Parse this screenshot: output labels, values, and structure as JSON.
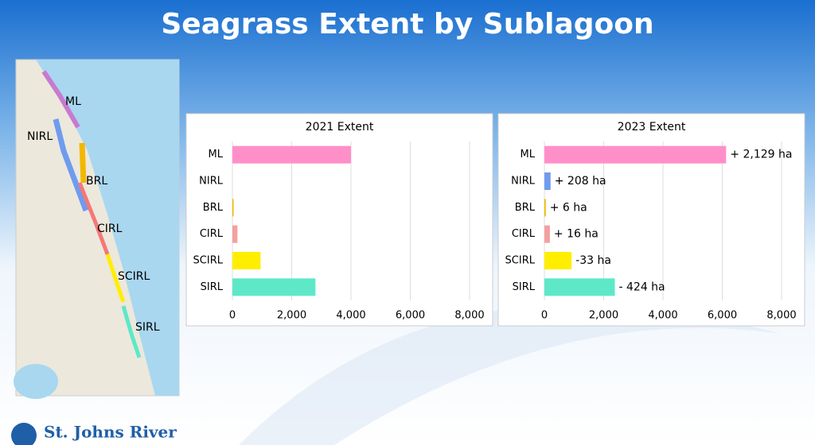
{
  "title": "Seagrass Extent by Sublagoon",
  "map": {
    "labels": [
      "ML",
      "NIRL",
      "BRL",
      "CIRL",
      "SCIRL",
      "SIRL"
    ]
  },
  "logo": "St. Johns River",
  "chart_data": [
    {
      "type": "bar",
      "orientation": "horizontal",
      "title": "2021 Extent",
      "categories": [
        "ML",
        "NIRL",
        "BRL",
        "CIRL",
        "SCIRL",
        "SIRL"
      ],
      "values": [
        4000,
        0,
        40,
        170,
        950,
        2800
      ],
      "colors": [
        "#ff8fc8",
        "#6f9bef",
        "#f2b800",
        "#f4a0a0",
        "#ffee00",
        "#5ee8c8"
      ],
      "xlim": [
        0,
        8000
      ],
      "xticks": [
        0,
        {
          "value": 2000,
          "label": "2,000"
        },
        {
          "value": 4000,
          "label": "4,000"
        },
        {
          "value": 6000,
          "label": "6,000"
        },
        {
          "value": 8000,
          "label": "8,000"
        }
      ],
      "grid": true
    },
    {
      "type": "bar",
      "orientation": "horizontal",
      "title": "2023 Extent",
      "categories": [
        "ML",
        "NIRL",
        "BRL",
        "CIRL",
        "SCIRL",
        "SIRL"
      ],
      "values": [
        6129,
        208,
        46,
        186,
        917,
        2376
      ],
      "colors": [
        "#ff8fc8",
        "#6f9bef",
        "#f2b800",
        "#f4a0a0",
        "#ffee00",
        "#5ee8c8"
      ],
      "annotations": [
        "+ 2,129 ha",
        "+ 208 ha",
        "+ 6 ha",
        "+ 16 ha",
        "-33 ha",
        "- 424 ha"
      ],
      "xlim": [
        0,
        8000
      ],
      "xticks": [
        0,
        {
          "value": 2000,
          "label": "2,000"
        },
        {
          "value": 4000,
          "label": "4,000"
        },
        {
          "value": 6000,
          "label": "6,000"
        },
        {
          "value": 8000,
          "label": "8,000"
        }
      ],
      "grid": true
    }
  ]
}
